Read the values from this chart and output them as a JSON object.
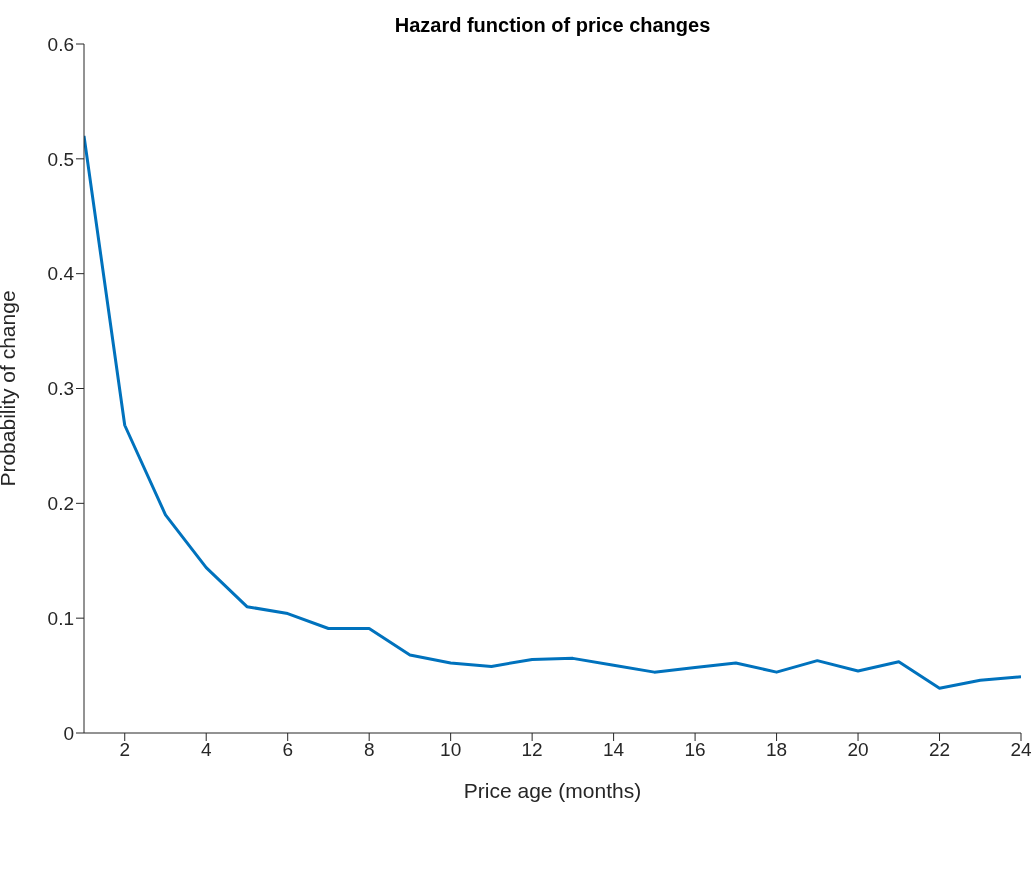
{
  "chart_data": {
    "type": "line",
    "title": "Hazard function of price changes",
    "xlabel": "Price age (months)",
    "ylabel": "Probability of change",
    "x": [
      1,
      2,
      3,
      4,
      5,
      6,
      7,
      8,
      9,
      10,
      11,
      12,
      13,
      14,
      15,
      16,
      17,
      18,
      19,
      20,
      21,
      22,
      23,
      24
    ],
    "series": [
      {
        "color": "#0072bd",
        "values": [
          0.52,
          0.268,
          0.19,
          0.144,
          0.11,
          0.104,
          0.091,
          0.091,
          0.068,
          0.061,
          0.058,
          0.064,
          0.065,
          0.059,
          0.053,
          0.057,
          0.061,
          0.053,
          0.063,
          0.054,
          0.062,
          0.039,
          0.046,
          0.049
        ]
      }
    ],
    "xlim": [
      1,
      24
    ],
    "xticks": [
      2,
      4,
      6,
      8,
      10,
      12,
      14,
      16,
      18,
      20,
      22,
      24
    ],
    "ylim": [
      0,
      0.6
    ],
    "yticks": [
      0,
      0.1,
      0.2,
      0.3,
      0.4,
      0.5,
      0.6
    ],
    "grid": false,
    "legend": false,
    "marker": "none",
    "line_style": "solid"
  }
}
